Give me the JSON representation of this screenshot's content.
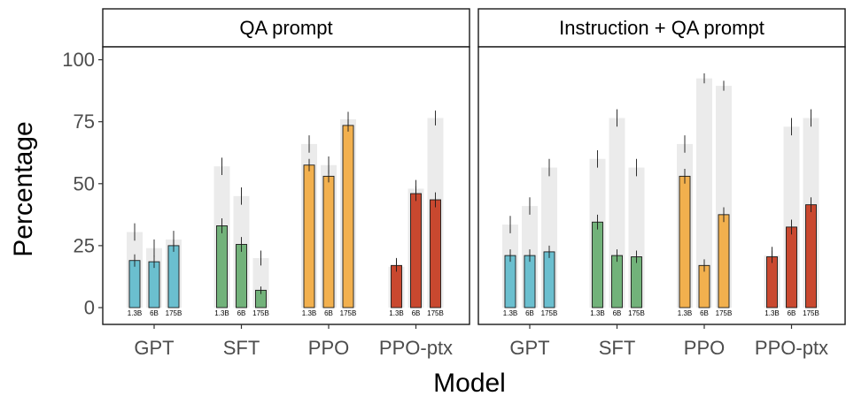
{
  "chart_data": {
    "type": "bar",
    "xlabel": "Model",
    "ylabel": "Percentage",
    "ylim": [
      0,
      105
    ],
    "yticks": [
      0,
      25,
      50,
      75,
      100
    ],
    "groups": [
      "GPT",
      "SFT",
      "PPO",
      "PPO-ptx"
    ],
    "sizes": [
      "1.3B",
      "6B",
      "175B"
    ],
    "colors": {
      "GPT": "#6bbfcf",
      "SFT": "#72b27a",
      "PPO": "#f2b04e",
      "PPO-ptx": "#c9482f"
    },
    "background_color": "#ebebeb",
    "panels": [
      {
        "title": "QA prompt",
        "series": [
          {
            "group": "GPT",
            "values": [
              19,
              18.5,
              25
            ],
            "errors": [
              2.5,
              2.5,
              2.5
            ],
            "background": [
              30.5,
              24,
              27.5
            ],
            "background_errors": [
              3.5,
              3.5,
              3.5
            ]
          },
          {
            "group": "SFT",
            "values": [
              33,
              25.5,
              7
            ],
            "errors": [
              3,
              3,
              1.5
            ],
            "background": [
              57,
              45,
              20
            ],
            "background_errors": [
              3.5,
              3.5,
              3
            ]
          },
          {
            "group": "PPO",
            "values": [
              57.5,
              53,
              73.5
            ],
            "errors": [
              2.5,
              2.5,
              2.5
            ],
            "background": [
              66,
              57.5,
              76
            ],
            "background_errors": [
              3.5,
              3.5,
              3
            ]
          },
          {
            "group": "PPO-ptx",
            "values": [
              17,
              46,
              43.5
            ],
            "errors": [
              2.5,
              3,
              3
            ],
            "background": [
              16.5,
              48,
              76.5
            ],
            "background_errors": [
              3.5,
              3.5,
              3
            ]
          }
        ]
      },
      {
        "title": "Instruction + QA prompt",
        "series": [
          {
            "group": "GPT",
            "values": [
              21,
              21,
              22.5
            ],
            "errors": [
              2.5,
              2.5,
              2.5
            ],
            "background": [
              33.5,
              41,
              56.5
            ],
            "background_errors": [
              3.5,
              3.5,
              3.5
            ]
          },
          {
            "group": "SFT",
            "values": [
              34.5,
              21,
              20.5
            ],
            "errors": [
              3,
              2.5,
              2.5
            ],
            "background": [
              60,
              76.5,
              56.5
            ],
            "background_errors": [
              3.5,
              3.5,
              3.5
            ]
          },
          {
            "group": "PPO",
            "values": [
              53,
              17,
              37.5
            ],
            "errors": [
              3,
              2.5,
              3
            ],
            "background": [
              66,
              92.5,
              89.5
            ],
            "background_errors": [
              3.5,
              2,
              2
            ]
          },
          {
            "group": "PPO-ptx",
            "values": [
              20.5,
              32.5,
              41.5
            ],
            "errors": [
              2.5,
              3,
              3
            ],
            "background": [
              21,
              73,
              76.5
            ],
            "background_errors": [
              3.5,
              3.5,
              3.5
            ]
          }
        ]
      }
    ]
  }
}
